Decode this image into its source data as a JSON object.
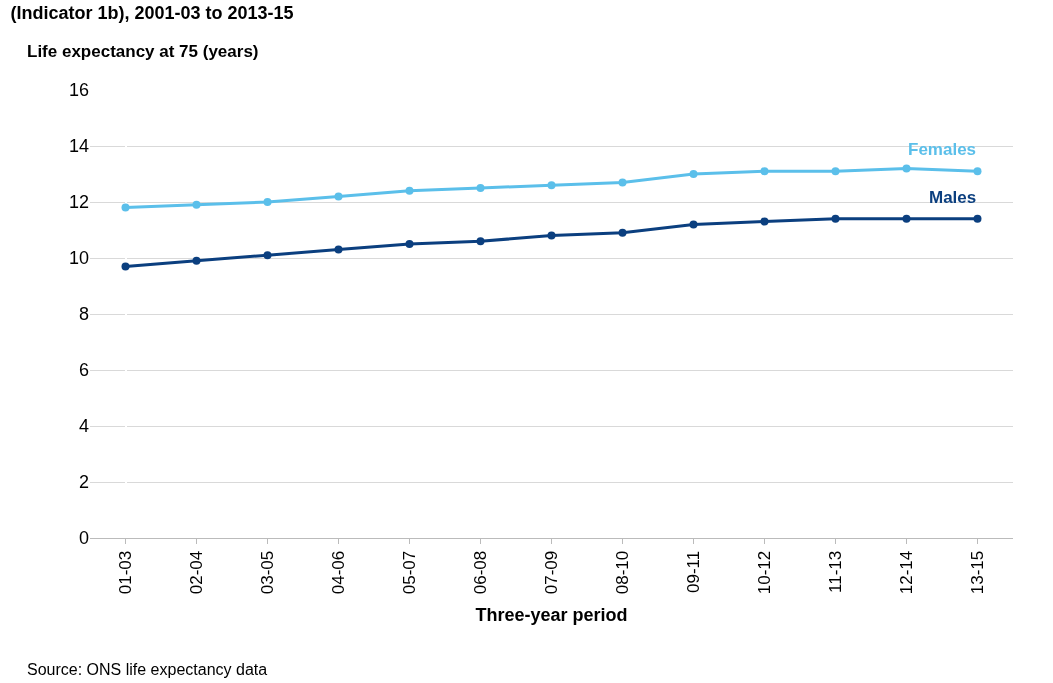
{
  "chart_data": {
    "type": "line",
    "title": "(Indicator 1b), 2001-03 to 2013-15",
    "ylabel": "Life expectancy at 75 (years)",
    "xlabel": "Three-year period",
    "categories": [
      "01-03",
      "02-04",
      "03-05",
      "04-06",
      "05-07",
      "06-08",
      "07-09",
      "08-10",
      "09-11",
      "10-12",
      "11-13",
      "12-14",
      "13-15"
    ],
    "series": [
      {
        "name": "Females",
        "color": "#5bbfea",
        "values": [
          11.8,
          11.9,
          12.0,
          12.2,
          12.4,
          12.5,
          12.6,
          12.7,
          13.0,
          13.1,
          13.1,
          13.2,
          13.1
        ]
      },
      {
        "name": "Males",
        "color": "#0b3f7f",
        "values": [
          9.7,
          9.9,
          10.1,
          10.3,
          10.5,
          10.6,
          10.8,
          10.9,
          11.2,
          11.3,
          11.4,
          11.4,
          11.4
        ]
      }
    ],
    "ylim": [
      0,
      16
    ],
    "yticks": [
      0,
      2,
      4,
      6,
      8,
      10,
      12,
      14,
      16
    ],
    "grid": "y",
    "legend": false,
    "marker": "circle",
    "line_style": "solid",
    "annotations": [
      "Source: ONS life expectancy data"
    ]
  }
}
